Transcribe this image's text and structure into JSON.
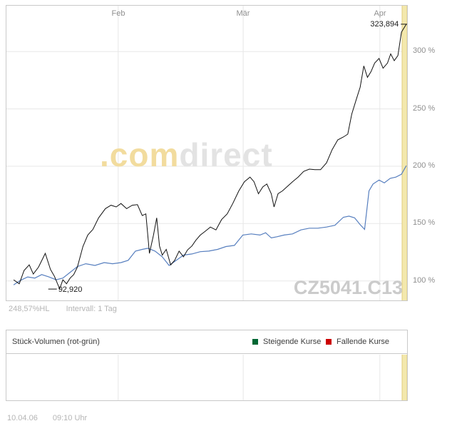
{
  "watermark": {
    "part1": ".com",
    "part2": "direct"
  },
  "price_chart": {
    "instrument_watermark": "CZ5041.C13",
    "range_label": "248,57%HL",
    "interval_label": "Intervall: 1 Tag"
  },
  "volume_chart": {
    "title": "Stück-Volumen (rot-grün)",
    "legend": [
      {
        "label": "Steigende Kurse",
        "color": "#006633"
      },
      {
        "label": "Fallende Kurse",
        "color": "#cc0000"
      }
    ]
  },
  "footer": {
    "date": "10.04.06",
    "time": "09:10 Uhr"
  },
  "chart_data": {
    "type": "line",
    "title": "",
    "xlabel": "",
    "ylabel": "",
    "x_axis": {
      "labels": [
        {
          "text": "Feb",
          "pos": 27.9
        },
        {
          "text": "Mär",
          "pos": 59.1
        },
        {
          "text": "Apr",
          "pos": 93.2
        }
      ]
    },
    "y_axis": {
      "ticks": [
        100,
        150,
        200,
        250,
        300
      ],
      "unit": "%",
      "ylim": [
        83,
        340
      ]
    },
    "grid": true,
    "highlight_band": {
      "x_from": 98.75,
      "x_to": 100,
      "color": "#f3e8ad",
      "edge_color": "#e0cd7e"
    },
    "series": [
      {
        "name": "price",
        "color": "#111111",
        "points": [
          [
            1.8,
            101
          ],
          [
            3.2,
            97.5
          ],
          [
            4.4,
            109
          ],
          [
            5.7,
            114
          ],
          [
            6.7,
            106
          ],
          [
            8,
            112
          ],
          [
            9.7,
            124
          ],
          [
            11,
            110
          ],
          [
            12,
            104
          ],
          [
            13.3,
            93
          ],
          [
            14.1,
            101
          ],
          [
            15,
            97.5
          ],
          [
            15.9,
            102.5
          ],
          [
            16.8,
            105.5
          ],
          [
            17.7,
            112
          ],
          [
            19.1,
            130
          ],
          [
            20.3,
            140
          ],
          [
            21.6,
            145
          ],
          [
            23,
            155
          ],
          [
            24.7,
            163
          ],
          [
            26.1,
            166
          ],
          [
            27.4,
            164.5
          ],
          [
            28.6,
            167.5
          ],
          [
            30,
            163
          ],
          [
            31.4,
            166
          ],
          [
            32.7,
            166.5
          ],
          [
            33.9,
            157
          ],
          [
            34.8,
            158.5
          ],
          [
            35.7,
            124
          ],
          [
            36.7,
            140
          ],
          [
            37.5,
            155
          ],
          [
            38.2,
            130.5
          ],
          [
            38.9,
            122.5
          ],
          [
            39.9,
            127.5
          ],
          [
            41,
            114
          ],
          [
            42,
            118
          ],
          [
            43.1,
            126
          ],
          [
            44.2,
            121
          ],
          [
            45.2,
            127
          ],
          [
            46.3,
            130.5
          ],
          [
            47.3,
            135.5
          ],
          [
            48.4,
            140
          ],
          [
            49.5,
            143
          ],
          [
            50.9,
            147
          ],
          [
            52.3,
            144.5
          ],
          [
            53.7,
            153.5
          ],
          [
            55.1,
            158.5
          ],
          [
            56.5,
            167.5
          ],
          [
            58,
            178.5
          ],
          [
            59.4,
            186.5
          ],
          [
            60.8,
            190.5
          ],
          [
            61.8,
            186.5
          ],
          [
            62.9,
            176
          ],
          [
            64,
            182
          ],
          [
            65,
            184.5
          ],
          [
            66.1,
            176
          ],
          [
            66.8,
            164.5
          ],
          [
            67.8,
            176
          ],
          [
            68.9,
            178.5
          ],
          [
            70,
            182
          ],
          [
            71.4,
            186.5
          ],
          [
            72.8,
            190.5
          ],
          [
            74.2,
            195.5
          ],
          [
            75.6,
            197.5
          ],
          [
            77,
            197
          ],
          [
            78.4,
            197
          ],
          [
            79.9,
            203
          ],
          [
            81.3,
            214.5
          ],
          [
            82.7,
            223
          ],
          [
            84.1,
            225.5
          ],
          [
            85.2,
            228
          ],
          [
            86.2,
            245.5
          ],
          [
            87.3,
            258
          ],
          [
            88.3,
            269
          ],
          [
            89.2,
            287.5
          ],
          [
            90.1,
            277.5
          ],
          [
            91,
            282.5
          ],
          [
            91.9,
            290
          ],
          [
            93,
            294
          ],
          [
            94,
            285.5
          ],
          [
            95.1,
            290
          ],
          [
            95.9,
            298
          ],
          [
            96.8,
            292
          ],
          [
            97.7,
            296.5
          ],
          [
            98.6,
            317
          ],
          [
            99.3,
            321
          ],
          [
            99.8,
            323.9
          ]
        ]
      },
      {
        "name": "benchmark",
        "color": "#577fbf",
        "points": [
          [
            1.8,
            96.5
          ],
          [
            3.5,
            100.5
          ],
          [
            5.3,
            103.5
          ],
          [
            7.1,
            102.5
          ],
          [
            8.8,
            105.5
          ],
          [
            10.6,
            103.5
          ],
          [
            12.4,
            101
          ],
          [
            14.1,
            102.5
          ],
          [
            15.9,
            107.5
          ],
          [
            17.7,
            112.5
          ],
          [
            19.8,
            115
          ],
          [
            22.1,
            113.5
          ],
          [
            24.4,
            116
          ],
          [
            26.5,
            115
          ],
          [
            28.6,
            116
          ],
          [
            30.4,
            118
          ],
          [
            32.2,
            126
          ],
          [
            33.9,
            127.5
          ],
          [
            35.3,
            128.5
          ],
          [
            37.1,
            126
          ],
          [
            38.9,
            121
          ],
          [
            40.6,
            113.5
          ],
          [
            42.4,
            118
          ],
          [
            44.2,
            122.5
          ],
          [
            46.3,
            123.5
          ],
          [
            48.4,
            125.5
          ],
          [
            50.5,
            126
          ],
          [
            52.7,
            127.5
          ],
          [
            54.8,
            130
          ],
          [
            56.9,
            131
          ],
          [
            59,
            140
          ],
          [
            61.1,
            141
          ],
          [
            63.3,
            140
          ],
          [
            64.7,
            142
          ],
          [
            66.1,
            137.5
          ],
          [
            67.5,
            138.5
          ],
          [
            69.3,
            140
          ],
          [
            71.4,
            141
          ],
          [
            73.5,
            144.5
          ],
          [
            75.6,
            146
          ],
          [
            77.7,
            146
          ],
          [
            79.9,
            147
          ],
          [
            82,
            148.5
          ],
          [
            84.1,
            155.5
          ],
          [
            85.5,
            156.5
          ],
          [
            86.9,
            155
          ],
          [
            88.3,
            149
          ],
          [
            89.4,
            145
          ],
          [
            90.5,
            178.5
          ],
          [
            91.5,
            184.5
          ],
          [
            93,
            188
          ],
          [
            94.3,
            185.5
          ],
          [
            95.8,
            189.5
          ],
          [
            97.2,
            190.5
          ],
          [
            98.6,
            193
          ],
          [
            99.8,
            200.5
          ]
        ]
      }
    ],
    "annotations": [
      {
        "text": "323,894",
        "x": 99.5,
        "value": 323.894,
        "side": "left"
      },
      {
        "text": "92,920",
        "x": 13.3,
        "value": 92.92,
        "side": "right"
      }
    ]
  }
}
